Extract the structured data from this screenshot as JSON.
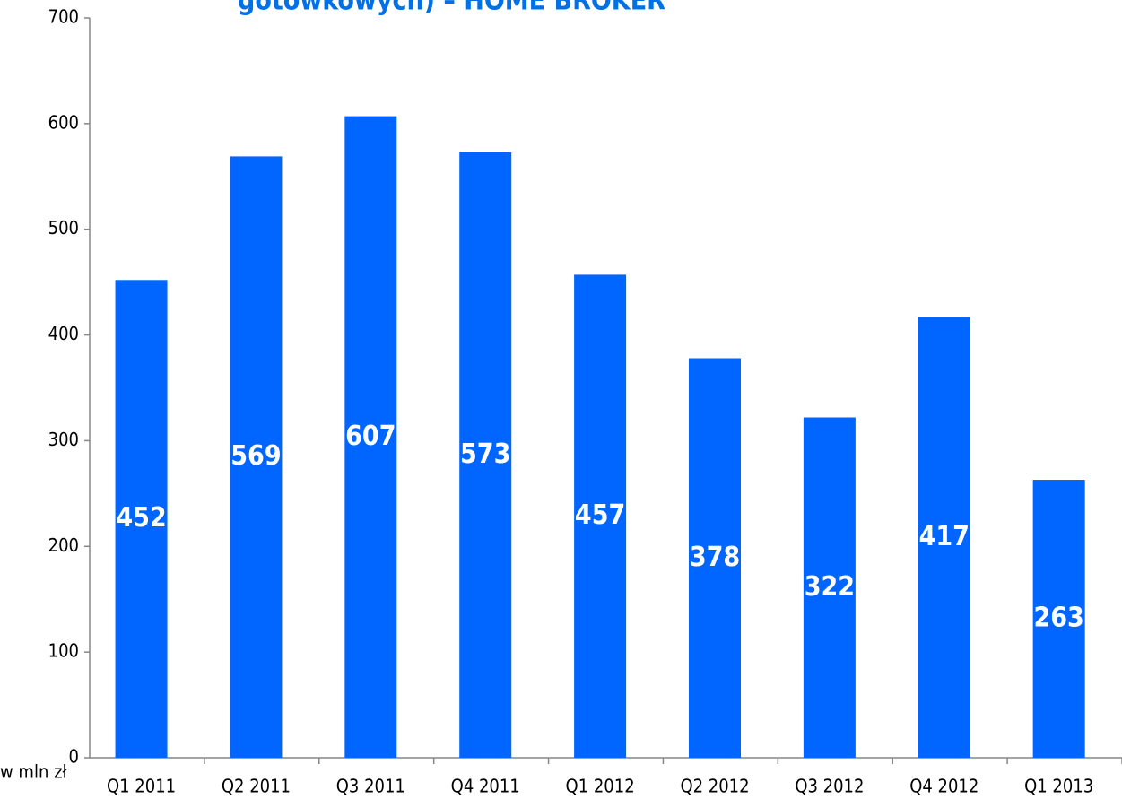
{
  "chart_data": {
    "type": "bar",
    "title": "gotówkowych) – HOME BROKER",
    "unit_label": "w mln zł",
    "categories": [
      "Q1 2011",
      "Q2 2011",
      "Q3 2011",
      "Q4 2011",
      "Q1 2012",
      "Q2 2012",
      "Q3 2012",
      "Q4 2012",
      "Q1 2013"
    ],
    "values": [
      452,
      569,
      607,
      573,
      457,
      378,
      322,
      417,
      263
    ],
    "color": "#0066ff",
    "ylim": [
      0,
      700
    ],
    "yticks": [
      0,
      100,
      200,
      300,
      400,
      500,
      600,
      700
    ],
    "grid": false
  }
}
